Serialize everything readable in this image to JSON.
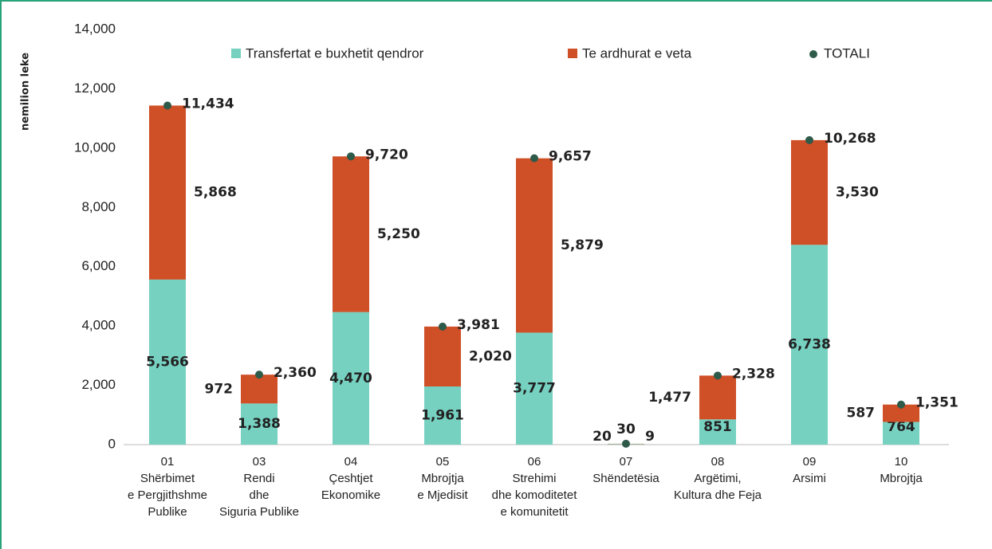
{
  "chart_data": {
    "type": "stacked-bar",
    "y_label": "nemilion leke",
    "categories": [
      [
        "01",
        "Shërbimet",
        "e Pergjithshme",
        "Publike"
      ],
      [
        "03",
        "Rendi",
        "dhe",
        "Siguria Publike"
      ],
      [
        "04",
        "Çeshtjet",
        "Ekonomike"
      ],
      [
        "05",
        "Mbrojtja",
        "e Mjedisit"
      ],
      [
        "06",
        "Strehimi",
        "dhe komoditetet",
        "e komunitetit"
      ],
      [
        "07",
        "Shëndetësia"
      ],
      [
        "08",
        "Argëtimi,",
        "Kultura dhe Feja"
      ],
      [
        "09",
        "Arsimi"
      ],
      [
        "10",
        "Mbrojtja"
      ]
    ],
    "series": [
      {
        "name": "Transfertat e buxhetit qendror",
        "color": "#76d1c1",
        "values": [
          5566,
          1388,
          4470,
          1961,
          3777,
          20,
          851,
          6738,
          764
        ]
      },
      {
        "name": "Te ardhurat e veta",
        "color": "#cf4f27",
        "values": [
          5868,
          972,
          5250,
          2020,
          5879,
          9,
          1477,
          3530,
          587
        ]
      }
    ],
    "totals": {
      "name": "TOTALI",
      "color": "#2e5a4a",
      "values": [
        11434,
        2360,
        9720,
        3981,
        9657,
        30,
        2328,
        10268,
        1351
      ]
    },
    "ylim": [
      0,
      14000
    ],
    "yticks": [
      0,
      {
        "value": 2000,
        "label": "2,000"
      },
      {
        "value": 4000,
        "label": "4,000"
      },
      {
        "value": 6000,
        "label": "6,000"
      },
      {
        "value": 8000,
        "label": "8,000"
      },
      {
        "value": 10000,
        "label": "10,000"
      },
      {
        "value": 12000,
        "label": "12,000"
      },
      {
        "value": 14000,
        "label": "14,000"
      }
    ],
    "value_labels": [
      [
        "5,566",
        "1,388",
        "4,470",
        "1,961",
        "3,777",
        "20",
        "851",
        "6,738",
        "764"
      ],
      [
        "5,868",
        "972",
        "5,250",
        "2,020",
        "5,879",
        "9",
        "1,477",
        "3,530",
        "587"
      ]
    ],
    "total_labels": [
      "11,434",
      "2,360",
      "9,720",
      "3,981",
      "9,657",
      "30",
      "2,328",
      "10,268",
      "1,351"
    ]
  }
}
